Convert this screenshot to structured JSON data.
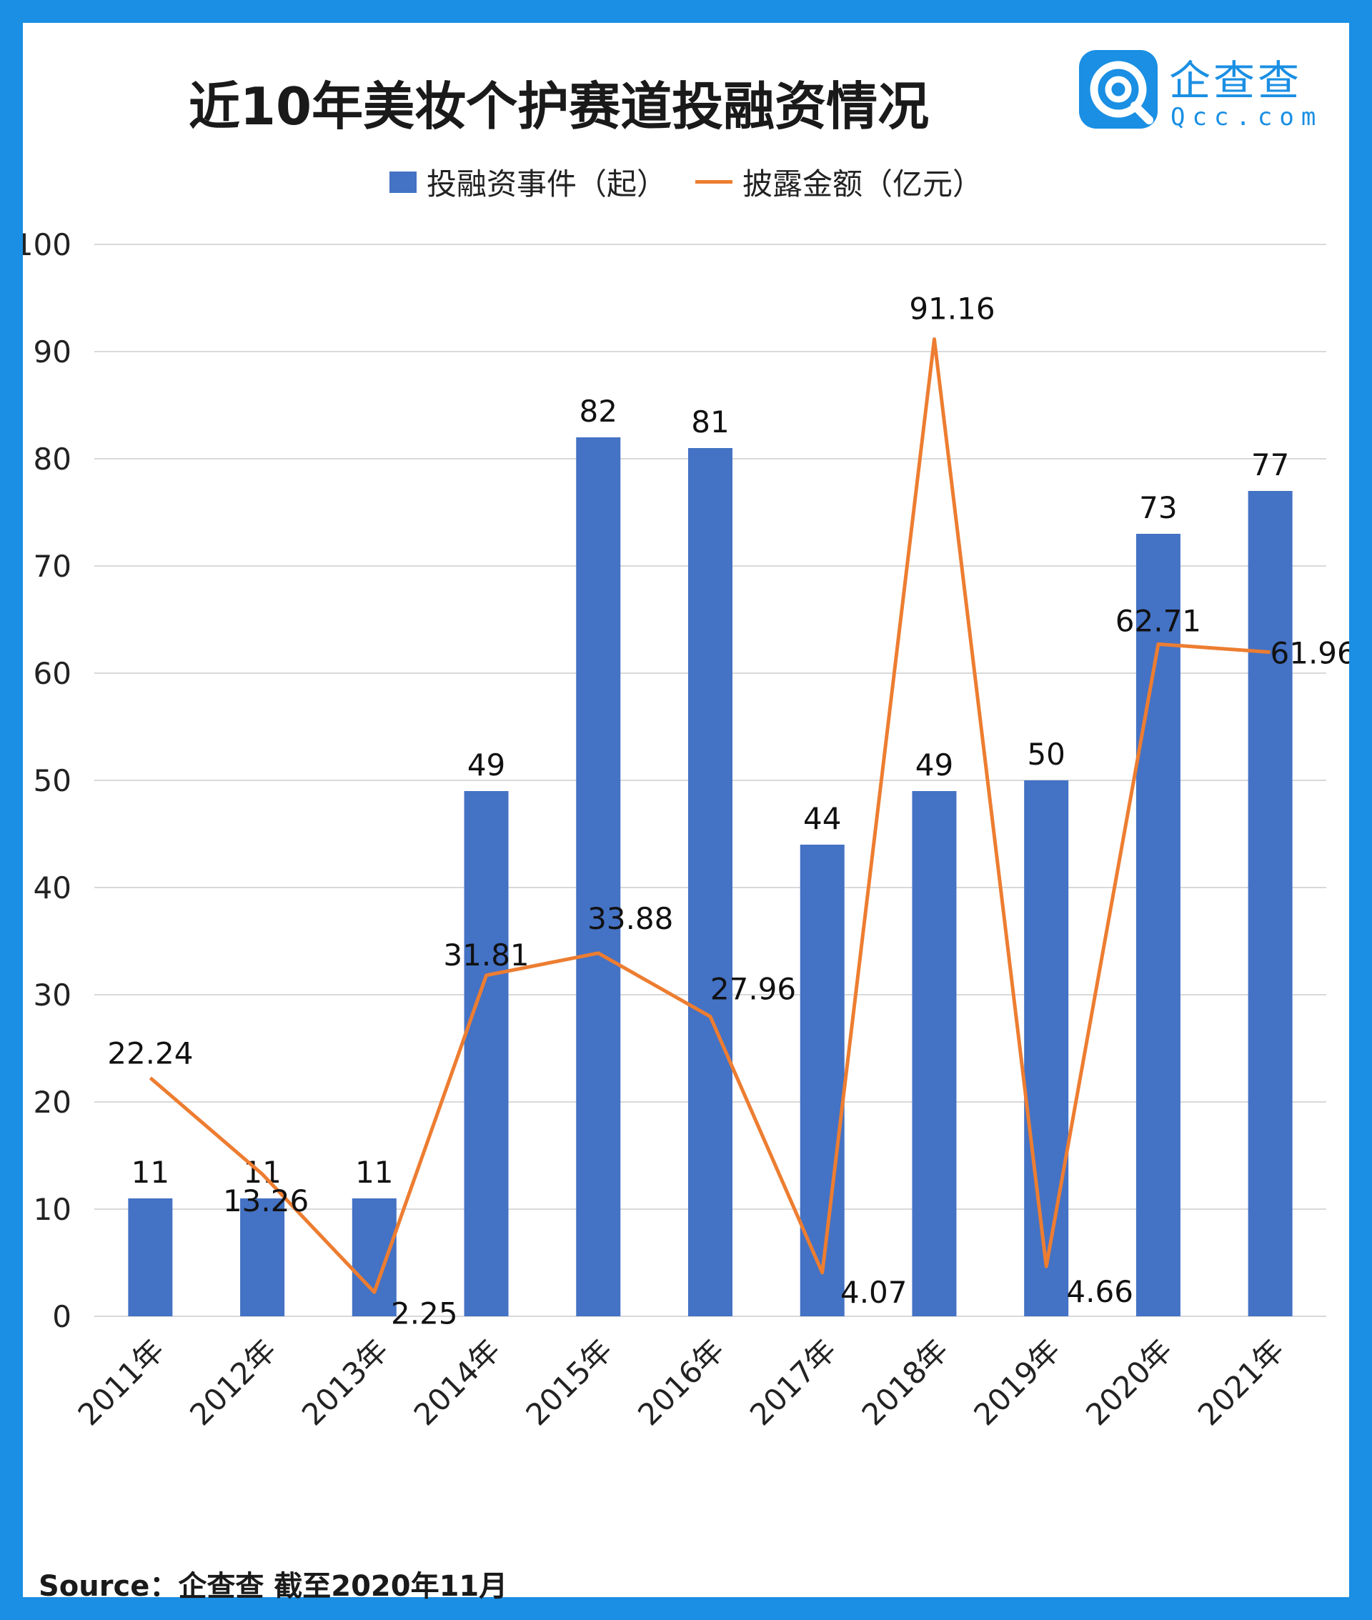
{
  "title": "近10年美妆个护赛道投融资情况",
  "logo": {
    "cn": "企查查",
    "en": "Qcc.com"
  },
  "source": "Source：企查查  截至2020年11月",
  "colors": {
    "frame": "#1a8fe3",
    "bar": "#4472c4",
    "line": "#ed7d31",
    "grid": "#d9d9d9",
    "text": "#1a1a1a"
  },
  "chart_data": {
    "type": "bar",
    "categories": [
      "2011年",
      "2012年",
      "2013年",
      "2014年",
      "2015年",
      "2016年",
      "2017年",
      "2018年",
      "2019年",
      "2020年",
      "2021年"
    ],
    "series": [
      {
        "name": "投融资事件（起）",
        "type": "bar",
        "values": [
          11,
          11,
          11,
          49,
          82,
          81,
          44,
          49,
          50,
          73,
          77
        ]
      },
      {
        "name": "披露金额（亿元）",
        "type": "line",
        "values": [
          22.24,
          13.26,
          2.25,
          31.81,
          33.88,
          27.96,
          4.07,
          91.16,
          4.66,
          62.71,
          61.96
        ]
      }
    ],
    "ylim": [
      0,
      100
    ],
    "yticks": [
      0,
      10,
      20,
      30,
      40,
      50,
      60,
      70,
      80,
      90,
      100
    ],
    "grid": true,
    "legend": "top-center"
  }
}
